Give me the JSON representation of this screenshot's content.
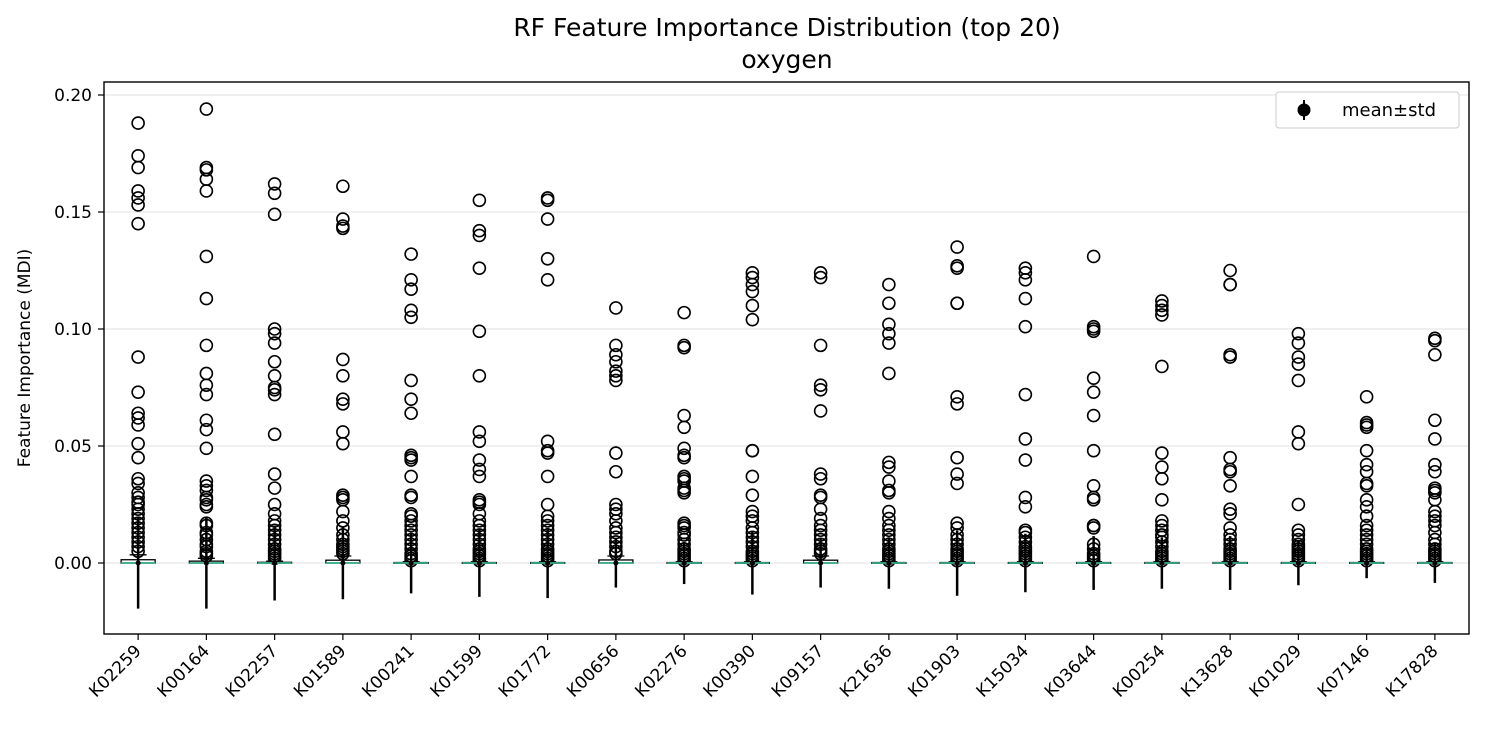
{
  "chart_data": {
    "type": "box",
    "title": "RF Feature Importance Distribution (top 20)",
    "subtitle": "oxygen",
    "xlabel": "",
    "ylabel": "Feature Importance (MDI)",
    "ylim": [
      -0.031,
      0.206
    ],
    "yticks": [
      0.0,
      0.05,
      0.1,
      0.15,
      0.2
    ],
    "ytick_labels": [
      "0.00",
      "0.05",
      "0.10",
      "0.15",
      "0.20"
    ],
    "grid": "horizontal",
    "legend": {
      "position": "top-right",
      "entries": [
        "mean±std"
      ]
    },
    "colors": {
      "median": "#3bb08f",
      "marker": "#000000",
      "grid": "#e6e6e6"
    },
    "categories": [
      "K02259",
      "K00164",
      "K02257",
      "K01589",
      "K00241",
      "K01599",
      "K01772",
      "K00656",
      "K02276",
      "K00390",
      "K09157",
      "K21636",
      "K01903",
      "K15034",
      "K03644",
      "K00254",
      "K13628",
      "K01029",
      "K07146",
      "K17828"
    ],
    "boxes": [
      {
        "q1": 0.0,
        "median": 0.0,
        "q3": 0.0014,
        "whisker_high": 0.0035,
        "mean": 0.0,
        "std": 0.0195
      },
      {
        "q1": 0.0,
        "median": 0.0,
        "q3": 0.0008,
        "whisker_high": 0.002,
        "mean": 0.0,
        "std": 0.0195
      },
      {
        "q1": 0.0,
        "median": 0.0,
        "q3": 0.0003,
        "whisker_high": 0.0008,
        "mean": 0.0,
        "std": 0.016
      },
      {
        "q1": 0.0,
        "median": 0.0,
        "q3": 0.0012,
        "whisker_high": 0.003,
        "mean": 0.0,
        "std": 0.0155
      },
      {
        "q1": 0.0,
        "median": 0.0,
        "q3": 0.0002,
        "whisker_high": 0.0005,
        "mean": 0.0,
        "std": 0.013
      },
      {
        "q1": 0.0,
        "median": 0.0,
        "q3": 0.0002,
        "whisker_high": 0.0005,
        "mean": 0.0,
        "std": 0.0145
      },
      {
        "q1": 0.0,
        "median": 0.0,
        "q3": 0.0002,
        "whisker_high": 0.0005,
        "mean": 0.0,
        "std": 0.015
      },
      {
        "q1": 0.0,
        "median": 0.0,
        "q3": 0.0013,
        "whisker_high": 0.003,
        "mean": 0.0,
        "std": 0.0105
      },
      {
        "q1": 0.0,
        "median": 0.0,
        "q3": 0.0002,
        "whisker_high": 0.0005,
        "mean": 0.0,
        "std": 0.009
      },
      {
        "q1": 0.0,
        "median": 0.0,
        "q3": 0.0002,
        "whisker_high": 0.0005,
        "mean": 0.0,
        "std": 0.0135
      },
      {
        "q1": 0.0,
        "median": 0.0,
        "q3": 0.0012,
        "whisker_high": 0.003,
        "mean": 0.0,
        "std": 0.0105
      },
      {
        "q1": 0.0,
        "median": 0.0,
        "q3": 0.0002,
        "whisker_high": 0.0005,
        "mean": 0.0,
        "std": 0.011
      },
      {
        "q1": 0.0,
        "median": 0.0,
        "q3": 0.0002,
        "whisker_high": 0.0005,
        "mean": 0.0,
        "std": 0.014
      },
      {
        "q1": 0.0,
        "median": 0.0,
        "q3": 0.0002,
        "whisker_high": 0.0005,
        "mean": 0.0,
        "std": 0.0125
      },
      {
        "q1": 0.0,
        "median": 0.0,
        "q3": 0.0002,
        "whisker_high": 0.0005,
        "mean": 0.0,
        "std": 0.0115
      },
      {
        "q1": 0.0,
        "median": 0.0,
        "q3": 0.0002,
        "whisker_high": 0.0005,
        "mean": 0.0,
        "std": 0.011
      },
      {
        "q1": 0.0,
        "median": 0.0,
        "q3": 0.0002,
        "whisker_high": 0.0005,
        "mean": 0.0,
        "std": 0.0115
      },
      {
        "q1": 0.0,
        "median": 0.0,
        "q3": 0.0002,
        "whisker_high": 0.0005,
        "mean": 0.0,
        "std": 0.0095
      },
      {
        "q1": 0.0,
        "median": 0.0,
        "q3": 0.0002,
        "whisker_high": 0.0005,
        "mean": 0.0,
        "std": 0.0065
      },
      {
        "q1": 0.0,
        "median": 0.0,
        "q3": 0.0002,
        "whisker_high": 0.0005,
        "mean": 0.0,
        "std": 0.0085
      }
    ],
    "outliers": [
      [
        0.188,
        0.174,
        0.169,
        0.159,
        0.156,
        0.153,
        0.145,
        0.088,
        0.073,
        0.064,
        0.062,
        0.059,
        0.051,
        0.045,
        0.036,
        0.034,
        0.03,
        0.028,
        0.026,
        0.025,
        0.023,
        0.021,
        0.019,
        0.017,
        0.015,
        0.013,
        0.011,
        0.009,
        0.007,
        0.005
      ],
      [
        0.194,
        0.169,
        0.168,
        0.164,
        0.159,
        0.131,
        0.113,
        0.093,
        0.081,
        0.076,
        0.072,
        0.061,
        0.057,
        0.049,
        0.035,
        0.033,
        0.031,
        0.028,
        0.027,
        0.025,
        0.024,
        0.017,
        0.016,
        0.013,
        0.012,
        0.01,
        0.008,
        0.007,
        0.005,
        0.004,
        0.003
      ],
      [
        0.162,
        0.158,
        0.149,
        0.1,
        0.098,
        0.094,
        0.086,
        0.08,
        0.075,
        0.074,
        0.072,
        0.055,
        0.038,
        0.032,
        0.025,
        0.021,
        0.018,
        0.016,
        0.014,
        0.012,
        0.01,
        0.008,
        0.006,
        0.005,
        0.004,
        0.003,
        0.002
      ],
      [
        0.161,
        0.147,
        0.144,
        0.143,
        0.087,
        0.08,
        0.07,
        0.068,
        0.056,
        0.051,
        0.029,
        0.028,
        0.027,
        0.022,
        0.018,
        0.015,
        0.012,
        0.01,
        0.008,
        0.007,
        0.006,
        0.005,
        0.004
      ],
      [
        0.132,
        0.121,
        0.117,
        0.108,
        0.105,
        0.078,
        0.07,
        0.064,
        0.046,
        0.045,
        0.044,
        0.037,
        0.029,
        0.028,
        0.021,
        0.02,
        0.018,
        0.016,
        0.014,
        0.012,
        0.01,
        0.008,
        0.006,
        0.004,
        0.003,
        0.002,
        0.001
      ],
      [
        0.155,
        0.142,
        0.14,
        0.126,
        0.099,
        0.08,
        0.056,
        0.052,
        0.044,
        0.04,
        0.037,
        0.027,
        0.026,
        0.025,
        0.021,
        0.018,
        0.016,
        0.014,
        0.012,
        0.01,
        0.008,
        0.006,
        0.005,
        0.004,
        0.003,
        0.002,
        0.001
      ],
      [
        0.156,
        0.155,
        0.147,
        0.13,
        0.121,
        0.052,
        0.048,
        0.047,
        0.037,
        0.025,
        0.02,
        0.018,
        0.016,
        0.014,
        0.012,
        0.01,
        0.008,
        0.006,
        0.005,
        0.004,
        0.003,
        0.002,
        0.001
      ],
      [
        0.109,
        0.093,
        0.089,
        0.086,
        0.082,
        0.08,
        0.078,
        0.047,
        0.039,
        0.025,
        0.023,
        0.021,
        0.018,
        0.015,
        0.013,
        0.011,
        0.009,
        0.007,
        0.005,
        0.004
      ],
      [
        0.107,
        0.093,
        0.092,
        0.063,
        0.058,
        0.049,
        0.046,
        0.045,
        0.037,
        0.036,
        0.035,
        0.032,
        0.031,
        0.03,
        0.017,
        0.016,
        0.015,
        0.013,
        0.012,
        0.01,
        0.008,
        0.006,
        0.005,
        0.004,
        0.003,
        0.002,
        0.001
      ],
      [
        0.124,
        0.122,
        0.119,
        0.116,
        0.11,
        0.104,
        0.048,
        0.048,
        0.037,
        0.029,
        0.022,
        0.02,
        0.018,
        0.015,
        0.013,
        0.011,
        0.009,
        0.007,
        0.005,
        0.004,
        0.003,
        0.002,
        0.001
      ],
      [
        0.124,
        0.122,
        0.093,
        0.076,
        0.074,
        0.065,
        0.038,
        0.036,
        0.029,
        0.028,
        0.023,
        0.019,
        0.016,
        0.014,
        0.012,
        0.01,
        0.008,
        0.006,
        0.005,
        0.004
      ],
      [
        0.119,
        0.111,
        0.102,
        0.098,
        0.094,
        0.081,
        0.043,
        0.041,
        0.035,
        0.031,
        0.03,
        0.022,
        0.019,
        0.016,
        0.014,
        0.012,
        0.01,
        0.008,
        0.006,
        0.005,
        0.004,
        0.003,
        0.002,
        0.001
      ],
      [
        0.135,
        0.127,
        0.126,
        0.111,
        0.111,
        0.071,
        0.068,
        0.045,
        0.038,
        0.034,
        0.017,
        0.015,
        0.012,
        0.01,
        0.008,
        0.006,
        0.005,
        0.004,
        0.003,
        0.002,
        0.001
      ],
      [
        0.126,
        0.124,
        0.121,
        0.113,
        0.101,
        0.072,
        0.053,
        0.044,
        0.028,
        0.024,
        0.014,
        0.013,
        0.011,
        0.009,
        0.007,
        0.006,
        0.005,
        0.004,
        0.003,
        0.002,
        0.001
      ],
      [
        0.131,
        0.101,
        0.1,
        0.099,
        0.079,
        0.073,
        0.063,
        0.048,
        0.033,
        0.028,
        0.027,
        0.016,
        0.016,
        0.015,
        0.008,
        0.006,
        0.004,
        0.003,
        0.002,
        0.001
      ],
      [
        0.112,
        0.11,
        0.108,
        0.106,
        0.084,
        0.047,
        0.041,
        0.036,
        0.027,
        0.018,
        0.016,
        0.014,
        0.012,
        0.011,
        0.009,
        0.007,
        0.005,
        0.004,
        0.003,
        0.002,
        0.001
      ],
      [
        0.125,
        0.119,
        0.119,
        0.089,
        0.088,
        0.045,
        0.04,
        0.039,
        0.033,
        0.023,
        0.021,
        0.015,
        0.012,
        0.01,
        0.008,
        0.006,
        0.005,
        0.004,
        0.003,
        0.002,
        0.001
      ],
      [
        0.098,
        0.094,
        0.088,
        0.085,
        0.078,
        0.056,
        0.051,
        0.025,
        0.014,
        0.012,
        0.01,
        0.008,
        0.007,
        0.006,
        0.005,
        0.004,
        0.003,
        0.002,
        0.001
      ],
      [
        0.071,
        0.06,
        0.059,
        0.058,
        0.048,
        0.042,
        0.039,
        0.034,
        0.033,
        0.027,
        0.024,
        0.02,
        0.016,
        0.014,
        0.012,
        0.01,
        0.008,
        0.006,
        0.005,
        0.004,
        0.003,
        0.002,
        0.001
      ],
      [
        0.096,
        0.095,
        0.089,
        0.061,
        0.053,
        0.042,
        0.039,
        0.032,
        0.031,
        0.03,
        0.027,
        0.022,
        0.02,
        0.018,
        0.016,
        0.013,
        0.01,
        0.008,
        0.006,
        0.005,
        0.004,
        0.003,
        0.002,
        0.001
      ]
    ]
  }
}
